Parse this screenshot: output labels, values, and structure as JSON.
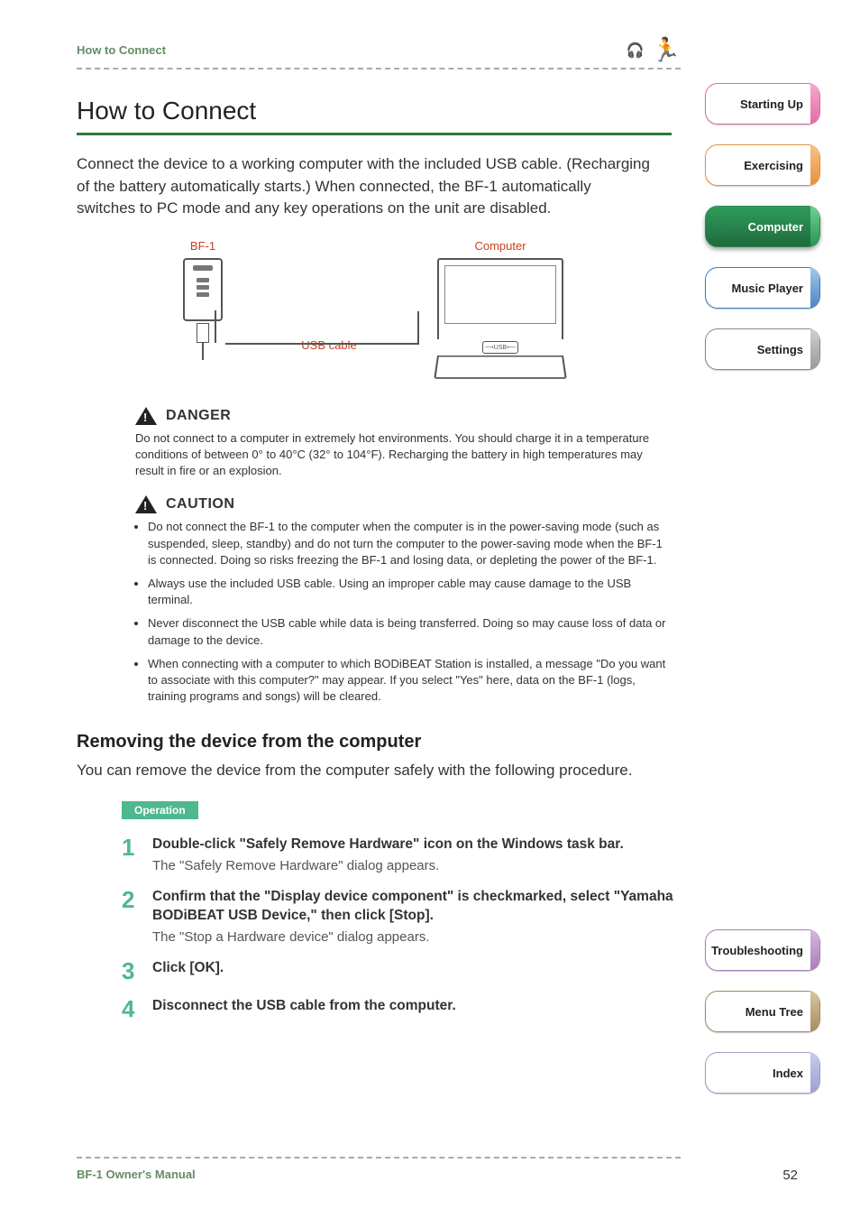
{
  "header": {
    "breadcrumb": "How to Connect"
  },
  "main": {
    "title": "How to Connect",
    "intro": "Connect the device to a working computer with the included USB cable. (Recharging of the battery automatically starts.) When connected, the BF-1 automatically switches to PC mode and any key operations on the unit are disabled."
  },
  "diagram": {
    "bf1_label": "BF-1",
    "computer_label": "Computer",
    "cable_label": "USB cable"
  },
  "danger": {
    "heading": "DANGER",
    "text": "Do not connect to a computer in extremely hot environments. You should charge it in a temperature conditions of between 0° to 40°C (32° to 104°F). Recharging the battery in high temperatures may result in fire or an explosion."
  },
  "caution": {
    "heading": "CAUTION",
    "items": [
      "Do not connect the BF-1 to the computer when the computer is in the power-saving mode (such as suspended, sleep, standby) and do not turn the computer to the power-saving mode when the BF-1 is connected. Doing so risks freezing the BF-1 and losing data, or depleting the power of the BF-1.",
      "Always use the included USB cable. Using an improper cable may cause damage to the USB terminal.",
      "Never disconnect the USB cable while data is being transferred. Doing so may cause loss of data or damage to the device.",
      "When connecting with a computer to which BODiBEAT Station is installed, a message \"Do you want to associate with this computer?\" may appear. If you select \"Yes\" here, data on the BF-1 (logs, training programs and songs) will be cleared."
    ]
  },
  "removing": {
    "heading": "Removing the device from the computer",
    "text": "You can remove the device from the computer safely with the following procedure.",
    "operation_label": "Operation",
    "steps": [
      {
        "num": "1",
        "title": "Double-click \"Safely Remove Hardware\" icon on the Windows task bar.",
        "desc": "The \"Safely Remove Hardware\" dialog appears."
      },
      {
        "num": "2",
        "title": "Confirm that the \"Display device component\" is checkmarked, select \"Yamaha BODiBEAT USB Device,\" then click [Stop].",
        "desc": "The \"Stop a Hardware device\" dialog appears."
      },
      {
        "num": "3",
        "title": "Click [OK].",
        "desc": ""
      },
      {
        "num": "4",
        "title": "Disconnect the USB cable from the computer.",
        "desc": ""
      }
    ]
  },
  "sidebar": {
    "upper": [
      {
        "label": "Starting Up",
        "color": "pink"
      },
      {
        "label": "Exercising",
        "color": "orange"
      },
      {
        "label": "Computer",
        "color": "green"
      },
      {
        "label": "Music Player",
        "color": "blue"
      },
      {
        "label": "Settings",
        "color": "gray"
      }
    ],
    "lower": [
      {
        "label": "Troubleshooting",
        "color": "purple"
      },
      {
        "label": "Menu Tree",
        "color": "brown"
      },
      {
        "label": "Index",
        "color": "lavender"
      }
    ]
  },
  "footer": {
    "manual": "BF-1 Owner's Manual",
    "page": "52"
  },
  "colors": {
    "accent_green": "#2a7a3e",
    "header_green": "#648c63",
    "diagram_red": "#c84020",
    "operation_bg": "#4fb88f",
    "step_num": "#4fb88f",
    "body_text": "#333333",
    "muted_text": "#555555"
  }
}
